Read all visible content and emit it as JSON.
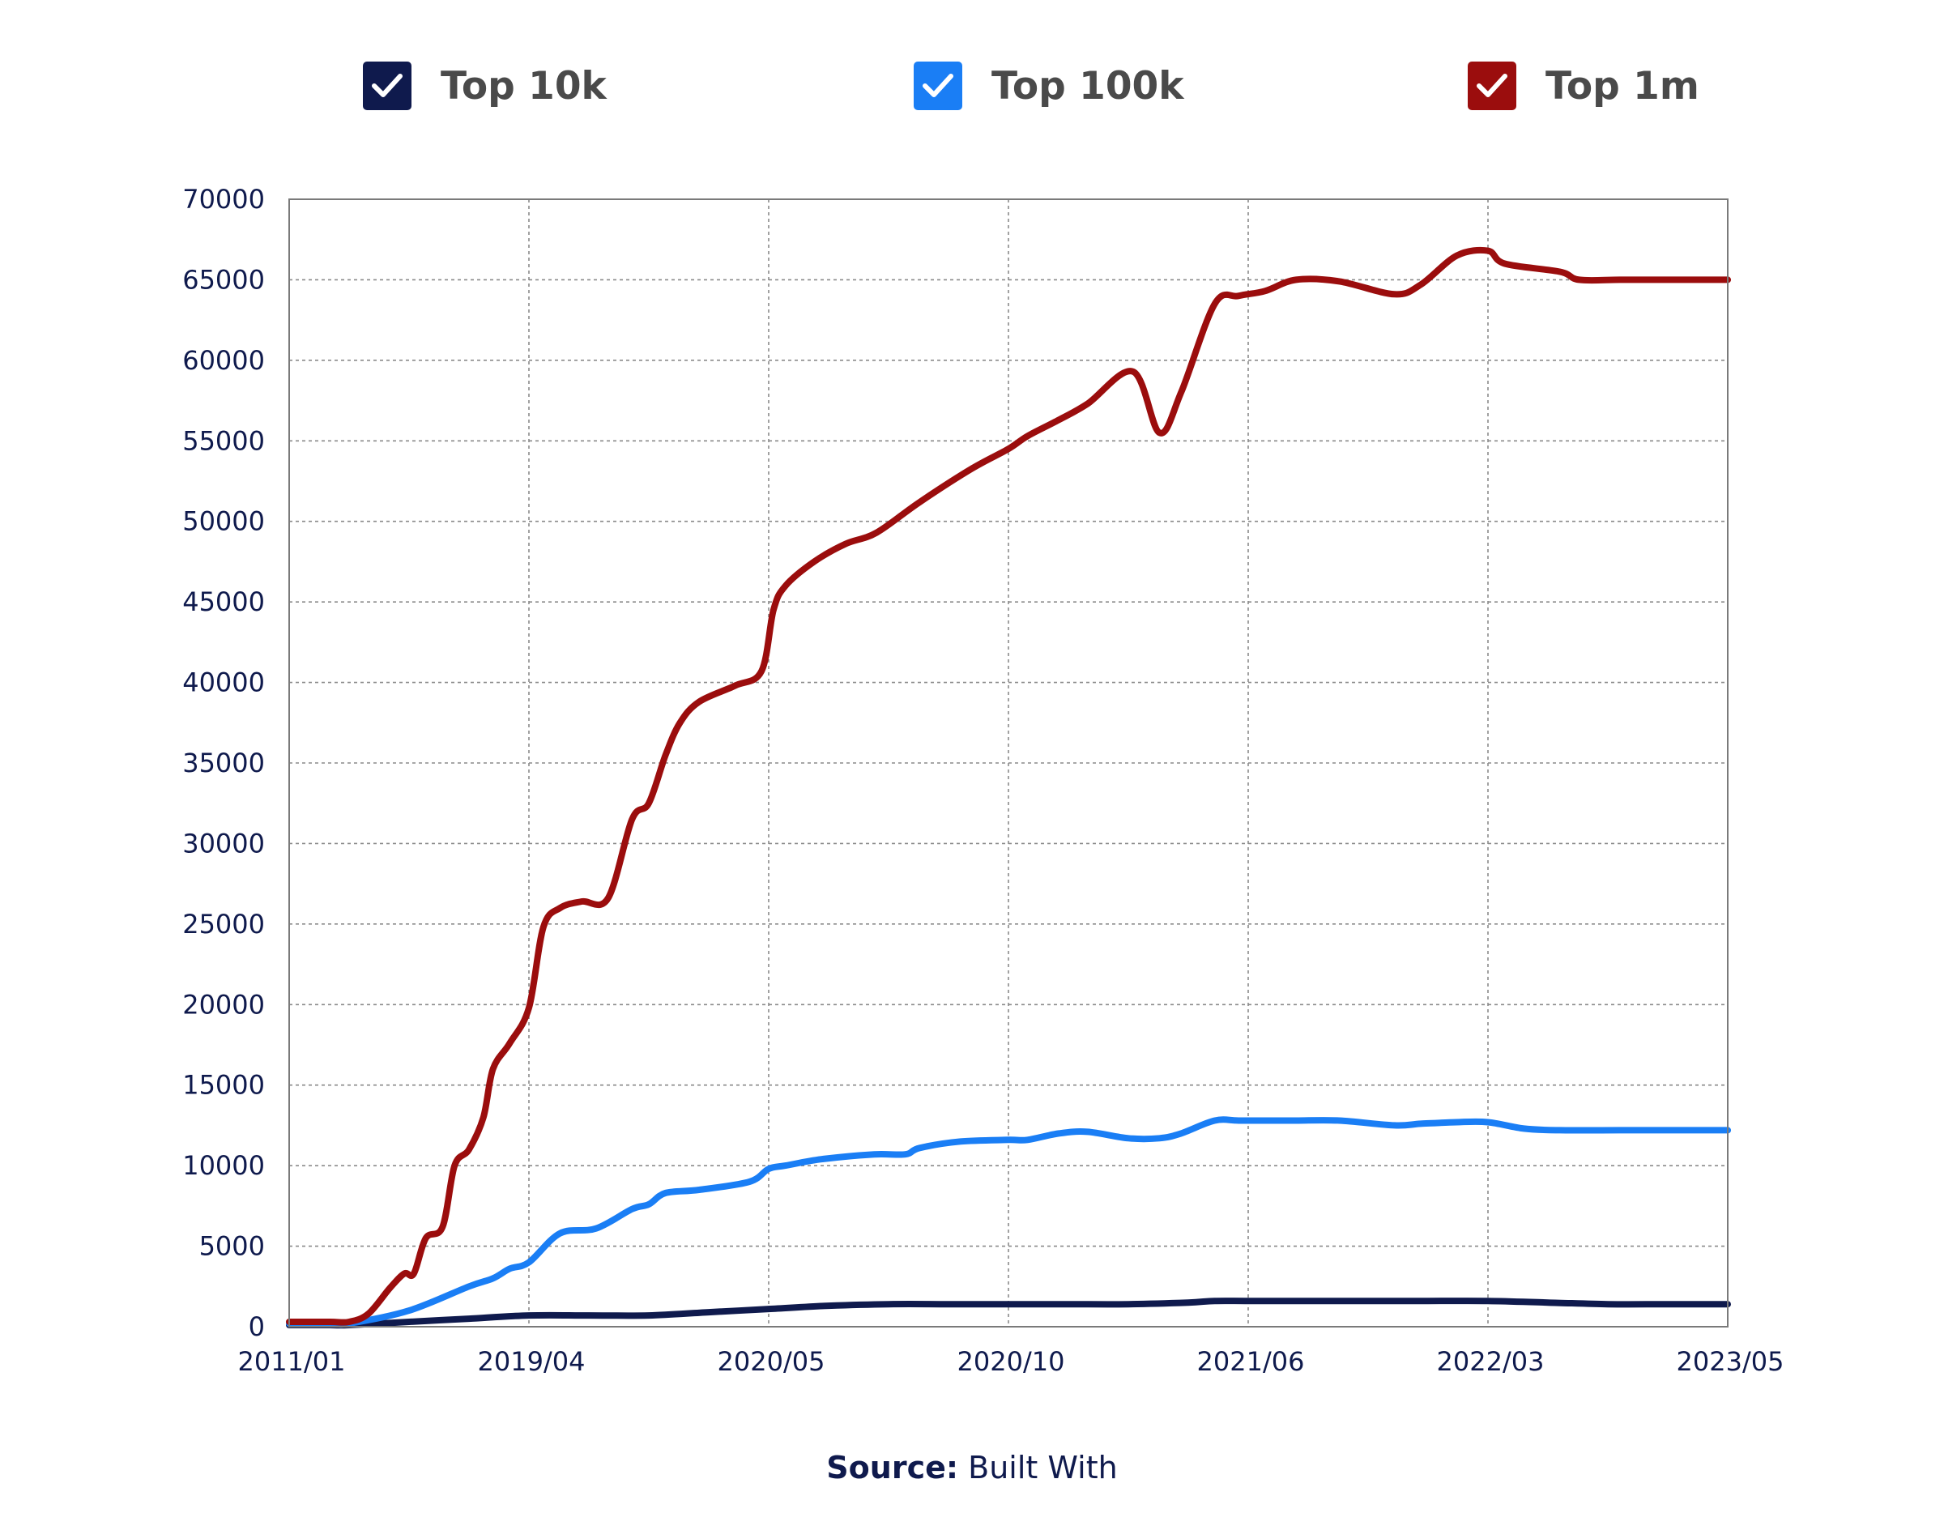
{
  "legend": [
    {
      "label": "Top 10k",
      "color": "#0f1a4d",
      "icon": "checkbox-checked-icon"
    },
    {
      "label": "Top 100k",
      "color": "#1a7ef5",
      "icon": "checkbox-checked-icon"
    },
    {
      "label": "Top 1m",
      "color": "#9b0d0d",
      "icon": "checkbox-checked-icon"
    }
  ],
  "source": {
    "label": "Source:",
    "value": "Built With"
  },
  "chart_data": {
    "type": "line",
    "title": "",
    "xlabel": "",
    "ylabel": "",
    "ylim": [
      0,
      70000
    ],
    "yticks": [
      0,
      5000,
      10000,
      15000,
      20000,
      25000,
      30000,
      35000,
      40000,
      45000,
      50000,
      55000,
      60000,
      65000,
      70000
    ],
    "xticks": [
      "2011/01",
      "2019/04",
      "2020/05",
      "2020/10",
      "2021/06",
      "2022/03",
      "2023/05"
    ],
    "grid": true,
    "legend_position": "top",
    "x_position_note": "positions measured in tick intervals from the first tick (0 = 2011/01, 6 = 2023/05)",
    "series": [
      {
        "name": "Top 1m",
        "color": "#9b0d0d",
        "x": [
          0,
          0.17,
          0.25,
          0.33,
          0.42,
          0.48,
          0.52,
          0.57,
          0.64,
          0.69,
          0.75,
          0.81,
          0.85,
          0.92,
          1.0,
          1.06,
          1.13,
          1.22,
          1.33,
          1.43,
          1.5,
          1.57,
          1.63,
          1.71,
          1.86,
          1.97,
          2.02,
          2.07,
          2.19,
          2.32,
          2.45,
          2.63,
          2.85,
          3.0,
          3.08,
          3.21,
          3.33,
          3.52,
          3.63,
          3.72,
          3.86,
          3.96,
          4.07,
          4.2,
          4.38,
          4.61,
          4.72,
          4.87,
          5.0,
          5.07,
          5.3,
          5.38,
          5.55,
          5.73,
          5.97,
          6.0
        ],
        "values": [
          300,
          300,
          300,
          800,
          2400,
          3300,
          3300,
          5500,
          6200,
          10000,
          11000,
          13000,
          16000,
          17600,
          19800,
          24800,
          26000,
          26400,
          26600,
          31500,
          32500,
          35500,
          37500,
          38800,
          39800,
          40700,
          44500,
          46000,
          47500,
          48600,
          49300,
          51200,
          53300,
          54500,
          55300,
          56300,
          57300,
          59300,
          55500,
          58000,
          63500,
          64000,
          64300,
          65000,
          64900,
          64100,
          64700,
          66500,
          66800,
          66000,
          65500,
          65000,
          65000,
          65000,
          65000,
          65000
        ]
      },
      {
        "name": "Top 100k",
        "color": "#1a7ef5",
        "x": [
          0,
          0.17,
          0.25,
          0.5,
          0.75,
          0.85,
          0.92,
          1.0,
          1.13,
          1.28,
          1.43,
          1.5,
          1.57,
          1.71,
          1.92,
          2.0,
          2.07,
          2.22,
          2.44,
          2.57,
          2.63,
          2.8,
          3.0,
          3.08,
          3.21,
          3.33,
          3.5,
          3.63,
          3.72,
          3.86,
          3.96,
          4.07,
          4.2,
          4.38,
          4.61,
          4.72,
          4.87,
          5.0,
          5.15,
          5.3,
          5.55,
          5.73,
          5.97,
          6.0
        ],
        "values": [
          200,
          200,
          200,
          1000,
          2500,
          3000,
          3600,
          4000,
          5800,
          6100,
          7300,
          7600,
          8300,
          8500,
          9000,
          9800,
          10000,
          10400,
          10700,
          10700,
          11100,
          11500,
          11600,
          11600,
          12000,
          12100,
          11700,
          11700,
          12000,
          12800,
          12800,
          12800,
          12800,
          12800,
          12500,
          12600,
          12700,
          12700,
          12300,
          12200,
          12200,
          12200,
          12200,
          12200
        ]
      },
      {
        "name": "Top 10k",
        "color": "#0f1a4d",
        "x": [
          0,
          0.17,
          0.25,
          0.5,
          0.75,
          1.0,
          1.25,
          1.5,
          1.75,
          2.0,
          2.25,
          2.5,
          2.75,
          3.0,
          3.25,
          3.5,
          3.75,
          3.86,
          4.0,
          4.25,
          4.5,
          4.75,
          5.0,
          5.25,
          5.5,
          5.75,
          6.0
        ],
        "values": [
          100,
          100,
          100,
          300,
          500,
          700,
          700,
          700,
          900,
          1100,
          1300,
          1400,
          1400,
          1400,
          1400,
          1400,
          1500,
          1600,
          1600,
          1600,
          1600,
          1600,
          1600,
          1500,
          1400,
          1400,
          1400
        ]
      }
    ]
  }
}
